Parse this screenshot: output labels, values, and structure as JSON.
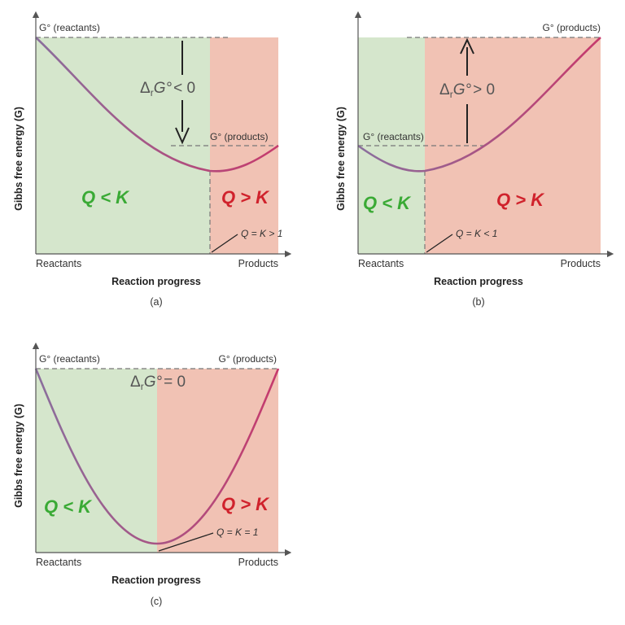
{
  "colors": {
    "green_region": "#d5e6cc",
    "red_region": "#f1c2b4",
    "green_text": "#3aaa35",
    "red_text": "#d0222c",
    "curve_start": "#8a6f9d",
    "curve_end": "#c63a6c"
  },
  "axis": {
    "y_label": "Gibbs free energy (G)",
    "x_label": "Reaction progress",
    "x_start": "Reactants",
    "x_end": "Products"
  },
  "panels": {
    "a": {
      "caption": "(a)",
      "g_reactants": "G° (reactants)",
      "g_products": "G° (products)",
      "delta_sign": "< 0",
      "q_left": "Q < K",
      "q_right": "Q > K",
      "equilibrium": "Q = K > 1"
    },
    "b": {
      "caption": "(b)",
      "g_reactants": "G° (reactants)",
      "g_products": "G° (products)",
      "delta_sign": "> 0",
      "q_left": "Q < K",
      "q_right": "Q > K",
      "equilibrium": "Q = K < 1"
    },
    "c": {
      "caption": "(c)",
      "g_reactants": "G° (reactants)",
      "g_products": "G° (products)",
      "delta_sign": "= 0",
      "q_left": "Q < K",
      "q_right": "Q > K",
      "equilibrium": "Q = K = 1"
    }
  },
  "delta": {
    "symbol": "Δ",
    "subscript": "r",
    "g_degree": "G°"
  }
}
